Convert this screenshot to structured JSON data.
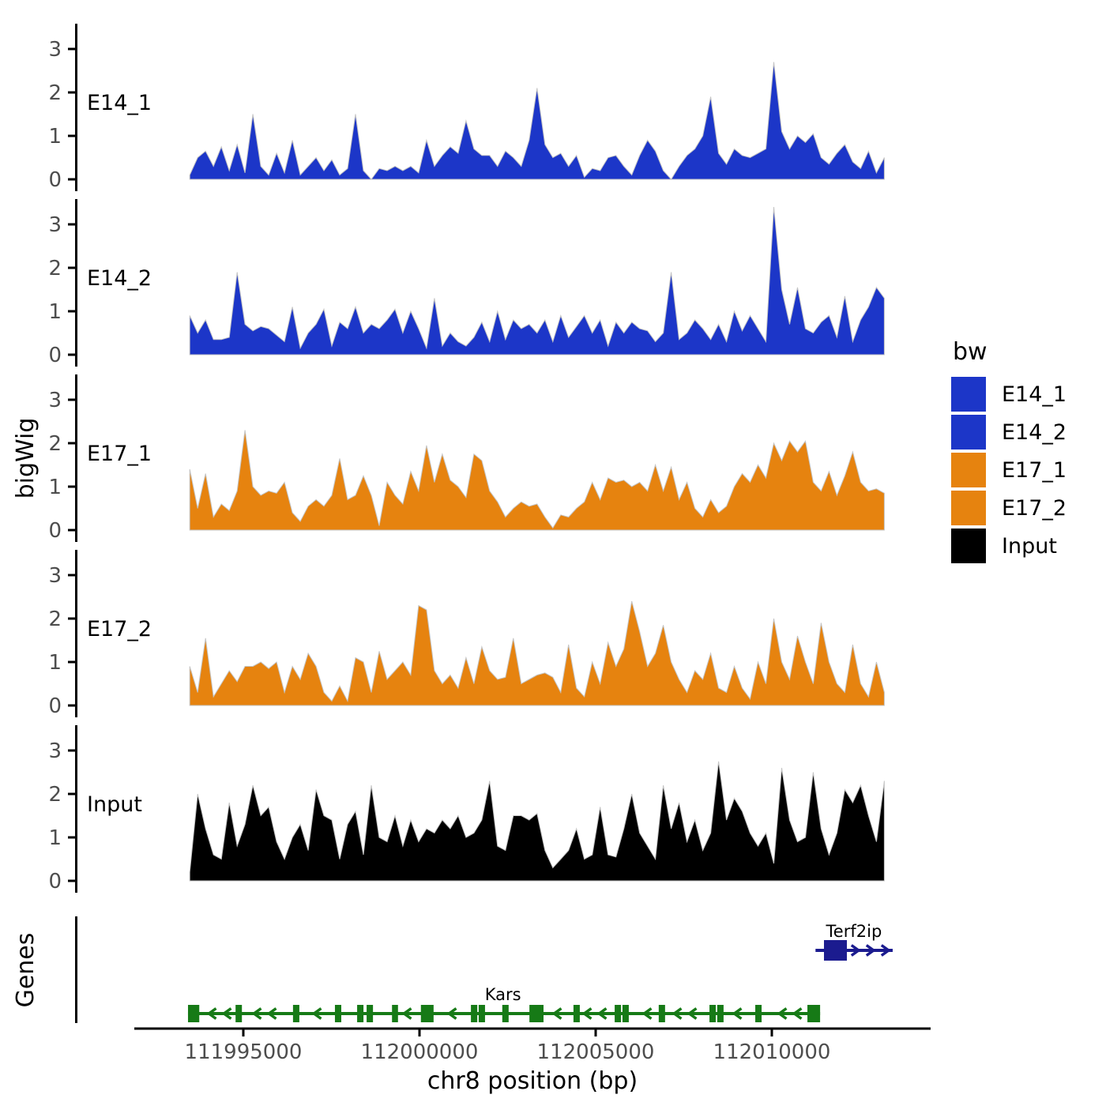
{
  "legend": {
    "title": "bw",
    "entries": [
      {
        "label": "E14_1",
        "color": "#1C36C8"
      },
      {
        "label": "E14_2",
        "color": "#1C36C8"
      },
      {
        "label": "E17_1",
        "color": "#E6830F"
      },
      {
        "label": "E17_2",
        "color": "#E6830F"
      },
      {
        "label": "Input",
        "color": "#000000"
      }
    ]
  },
  "chart_data": {
    "type": "area",
    "title": "",
    "xlabel": "chr8 position (bp)",
    "ylabel": "bigWig",
    "genes_label": "Genes",
    "ylim": [
      0,
      3.45
    ],
    "y_ticks": [
      0,
      1,
      2,
      3
    ],
    "x_ticks": [
      {
        "bp": 111995000,
        "label": "111995000"
      },
      {
        "bp": 112000000,
        "label": "112000000"
      },
      {
        "bp": 112005000,
        "label": "112005000"
      },
      {
        "bp": 112010000,
        "label": "112010000"
      }
    ],
    "signal_x_start_bp": 111993480,
    "signal_x_step_bp": 224,
    "series": [
      {
        "name": "E14_1",
        "color": "#1C36C8",
        "values": [
          0.1,
          0.5,
          0.65,
          0.3,
          0.75,
          0.2,
          0.8,
          0.15,
          1.5,
          0.3,
          0.1,
          0.6,
          0.15,
          0.9,
          0.1,
          0.3,
          0.5,
          0.2,
          0.45,
          0.1,
          0.25,
          1.5,
          0.2,
          0,
          0.25,
          0.2,
          0.3,
          0.2,
          0.3,
          0.15,
          0.9,
          0.3,
          0.55,
          0.75,
          0.6,
          1.35,
          0.7,
          0.55,
          0.55,
          0.3,
          0.65,
          0.5,
          0.3,
          0.9,
          2.1,
          0.8,
          0.5,
          0.6,
          0.3,
          0.55,
          0.05,
          0.25,
          0.2,
          0.5,
          0.55,
          0.3,
          0.1,
          0.55,
          0.9,
          0.65,
          0.2,
          0,
          0.3,
          0.55,
          0.7,
          1.0,
          1.9,
          0.6,
          0.35,
          0.7,
          0.55,
          0.5,
          0.6,
          0.7,
          2.7,
          1.1,
          0.7,
          1.0,
          0.85,
          1.05,
          0.5,
          0.35,
          0.6,
          0.8,
          0.4,
          0.25,
          0.65,
          0.15,
          0.5
        ]
      },
      {
        "name": "E14_2",
        "color": "#1C36C8",
        "values": [
          0.9,
          0.5,
          0.8,
          0.35,
          0.35,
          0.4,
          1.9,
          0.7,
          0.55,
          0.65,
          0.6,
          0.45,
          0.3,
          1.1,
          0.15,
          0.5,
          0.7,
          1.05,
          0.2,
          0.75,
          0.6,
          1.1,
          0.5,
          0.7,
          0.6,
          0.8,
          1.05,
          0.5,
          1.0,
          0.6,
          0.15,
          1.3,
          0.2,
          0.5,
          0.3,
          0.2,
          0.4,
          0.75,
          0.3,
          1.0,
          0.35,
          0.8,
          0.6,
          0.7,
          0.5,
          0.8,
          0.3,
          0.9,
          0.4,
          0.65,
          0.9,
          0.5,
          0.8,
          0.2,
          0.75,
          0.5,
          0.75,
          0.6,
          0.55,
          0.3,
          0.5,
          1.9,
          0.35,
          0.5,
          0.8,
          0.6,
          0.35,
          0.7,
          0.3,
          1.0,
          0.55,
          0.9,
          0.6,
          0.3,
          3.4,
          1.5,
          0.7,
          1.55,
          0.6,
          0.5,
          0.75,
          0.9,
          0.4,
          1.35,
          0.3,
          0.8,
          1.1,
          1.55,
          1.3
        ]
      },
      {
        "name": "E17_1",
        "color": "#E6830F",
        "values": [
          1.4,
          0.5,
          1.3,
          0.3,
          0.6,
          0.45,
          0.9,
          2.3,
          1.0,
          0.8,
          0.9,
          0.85,
          1.1,
          0.4,
          0.2,
          0.55,
          0.7,
          0.55,
          0.8,
          1.65,
          0.7,
          0.8,
          1.25,
          0.8,
          0.1,
          1.1,
          0.8,
          0.6,
          1.35,
          0.9,
          1.95,
          1.1,
          1.75,
          1.15,
          1.0,
          0.75,
          1.75,
          1.6,
          0.9,
          0.65,
          0.3,
          0.5,
          0.65,
          0.55,
          0.6,
          0.3,
          0.05,
          0.35,
          0.3,
          0.5,
          0.65,
          1.1,
          0.7,
          1.2,
          1.1,
          1.15,
          1.0,
          1.1,
          0.9,
          1.5,
          0.9,
          1.45,
          0.7,
          1.1,
          0.5,
          0.3,
          0.7,
          0.4,
          0.55,
          1.0,
          1.3,
          1.1,
          1.5,
          1.2,
          2.0,
          1.6,
          2.05,
          1.8,
          2.05,
          1.1,
          0.9,
          1.35,
          0.8,
          1.25,
          1.8,
          1.1,
          0.9,
          0.95,
          0.85
        ]
      },
      {
        "name": "E17_2",
        "color": "#E6830F",
        "values": [
          0.9,
          0.3,
          1.55,
          0.2,
          0.5,
          0.8,
          0.55,
          0.9,
          0.9,
          1.0,
          0.85,
          1.0,
          0.3,
          0.9,
          0.6,
          1.2,
          0.9,
          0.3,
          0.1,
          0.45,
          0.1,
          1.1,
          1.0,
          0.3,
          1.25,
          0.6,
          0.8,
          1.0,
          0.7,
          2.3,
          2.2,
          0.8,
          0.5,
          0.7,
          0.4,
          1.1,
          0.5,
          1.35,
          0.8,
          0.6,
          0.65,
          1.55,
          0.5,
          0.6,
          0.7,
          0.75,
          0.65,
          0.3,
          1.4,
          0.4,
          0.2,
          1.0,
          0.5,
          1.45,
          0.9,
          1.3,
          2.4,
          1.7,
          0.9,
          1.2,
          1.85,
          1.0,
          0.6,
          0.3,
          0.8,
          0.6,
          1.2,
          0.4,
          0.3,
          0.9,
          0.4,
          0.15,
          1.0,
          0.5,
          2.0,
          1.0,
          0.6,
          1.6,
          1.0,
          0.5,
          1.9,
          1.0,
          0.5,
          0.3,
          1.4,
          0.5,
          0.2,
          1.0,
          0.3
        ]
      },
      {
        "name": "Input",
        "color": "#000000",
        "values": [
          0.2,
          2.0,
          1.2,
          0.6,
          0.5,
          1.8,
          0.8,
          1.3,
          2.2,
          1.5,
          1.7,
          0.9,
          0.5,
          1.0,
          1.3,
          0.7,
          2.1,
          1.5,
          1.4,
          0.5,
          1.3,
          1.6,
          0.6,
          2.2,
          1.0,
          0.9,
          1.5,
          0.8,
          1.4,
          0.9,
          1.2,
          1.1,
          1.4,
          1.2,
          1.5,
          1.0,
          1.1,
          1.4,
          2.3,
          0.8,
          0.7,
          1.5,
          1.5,
          1.4,
          1.55,
          0.7,
          0.3,
          0.5,
          0.7,
          1.2,
          0.5,
          0.6,
          1.7,
          0.6,
          0.55,
          1.2,
          2.0,
          1.1,
          0.8,
          0.5,
          2.2,
          1.2,
          1.8,
          0.9,
          1.4,
          0.7,
          1.1,
          2.75,
          1.4,
          1.9,
          1.6,
          1.1,
          0.8,
          1.1,
          0.4,
          2.6,
          1.4,
          0.9,
          1.0,
          2.5,
          1.2,
          0.6,
          1.1,
          2.1,
          1.8,
          2.2,
          1.5,
          0.9,
          2.3
        ]
      }
    ],
    "genes": [
      {
        "name": "Terf2ip",
        "strand": "+",
        "color": "#1B1B8F",
        "row": 0,
        "start_bp": 112011240,
        "end_bp": 112013430,
        "label_bp": 112012330,
        "exons": [
          [
            112011480,
            112012130
          ]
        ]
      },
      {
        "name": "Kars",
        "strand": "-",
        "color": "#167A16",
        "row": 1,
        "start_bp": 111993430,
        "end_bp": 112011370,
        "label_bp": 112002370,
        "exons": [
          [
            111993430,
            111993750
          ],
          [
            111994780,
            111994960
          ],
          [
            111996410,
            111996590
          ],
          [
            111997600,
            111997780
          ],
          [
            111998230,
            111998410
          ],
          [
            111998500,
            111998680
          ],
          [
            111999220,
            111999390
          ],
          [
            112000040,
            112000400
          ],
          [
            112001460,
            112001640
          ],
          [
            112001680,
            112001860
          ],
          [
            112002350,
            112002530
          ],
          [
            112003120,
            112003520
          ],
          [
            112004370,
            112004550
          ],
          [
            112005540,
            112005720
          ],
          [
            112005760,
            112005940
          ],
          [
            112006790,
            112006970
          ],
          [
            112008230,
            112008410
          ],
          [
            112008450,
            112008630
          ],
          [
            112009530,
            112009710
          ],
          [
            112011010,
            112011370
          ]
        ]
      }
    ]
  }
}
